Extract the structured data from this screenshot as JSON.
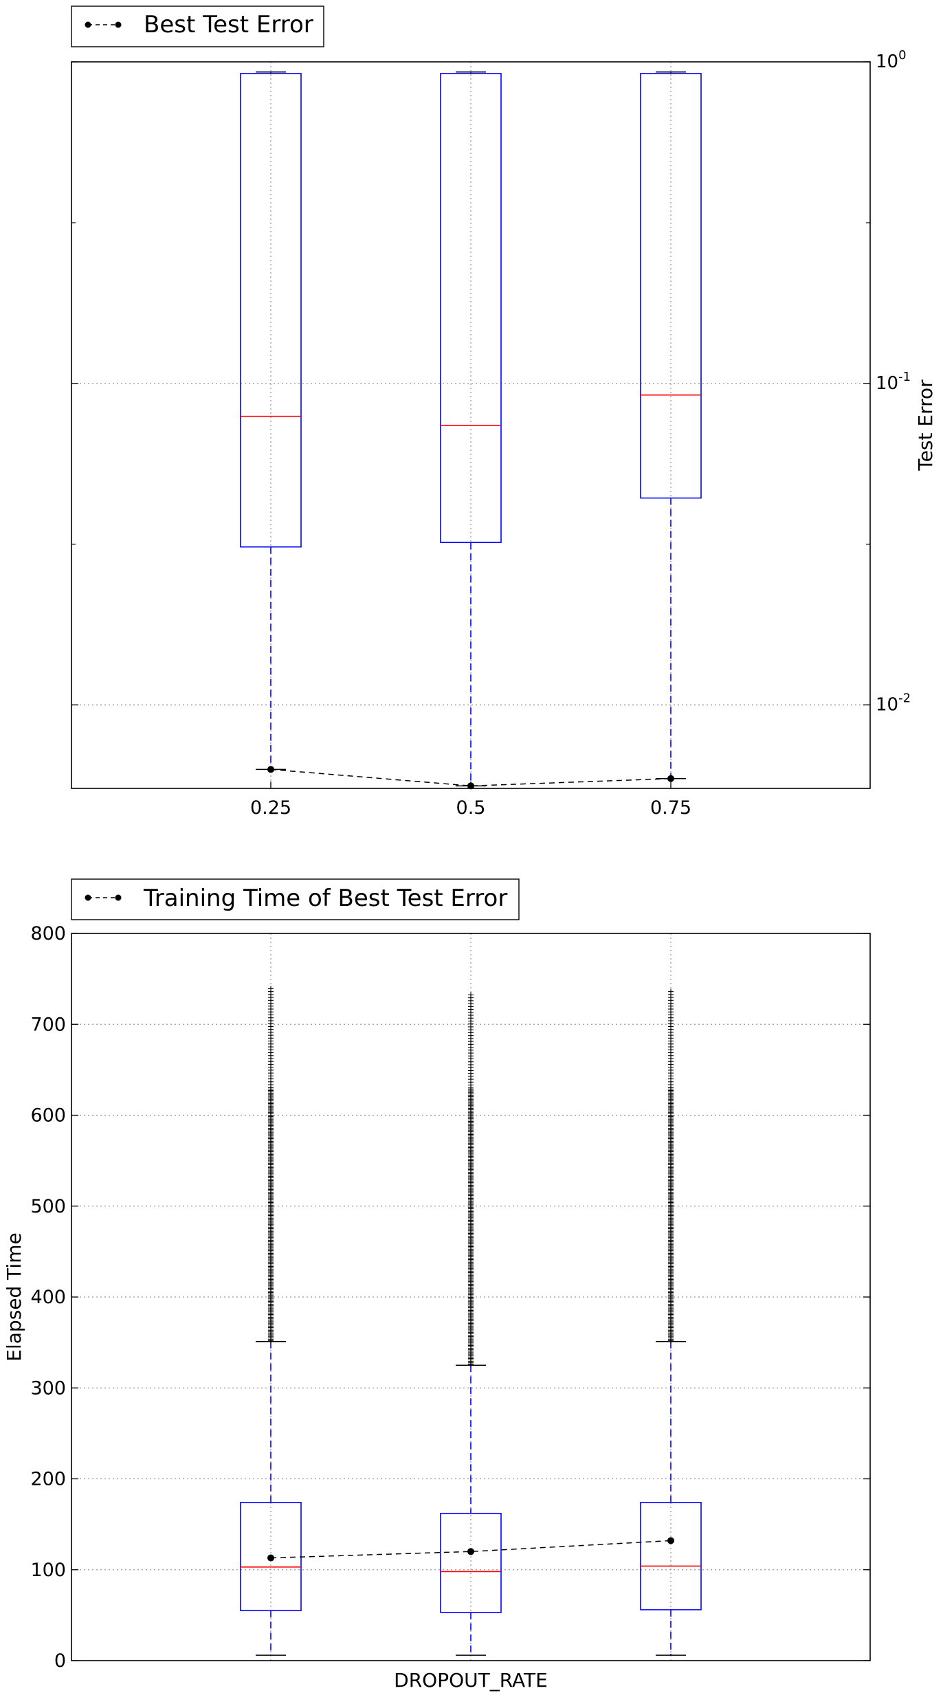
{
  "chart_data": [
    {
      "type": "box",
      "legend": {
        "label": "Best Test Error",
        "placement": "top-left"
      },
      "x_categories": [
        "0.25",
        "0.5",
        "0.75"
      ],
      "y_axis": {
        "label": "Test Error",
        "side": "right",
        "scale": "log",
        "ylim": [
          0.0055,
          1.0
        ],
        "ticks": [
          {
            "value": 1.0,
            "base": "10",
            "exp": "0"
          },
          {
            "value": 0.1,
            "base": "10",
            "exp": "-1"
          },
          {
            "value": 0.01,
            "base": "10",
            "exp": "-2"
          }
        ]
      },
      "grid": true,
      "boxes": [
        {
          "category": "0.25",
          "whisker_low": 0.0063,
          "q1": 0.031,
          "median": 0.079,
          "q3": 0.92,
          "whisker_high": 0.93
        },
        {
          "category": "0.5",
          "whisker_low": 0.0056,
          "q1": 0.032,
          "median": 0.074,
          "q3": 0.92,
          "whisker_high": 0.93
        },
        {
          "category": "0.75",
          "whisker_low": 0.0059,
          "q1": 0.044,
          "median": 0.092,
          "q3": 0.92,
          "whisker_high": 0.93
        }
      ],
      "series": [
        {
          "name": "Best Test Error",
          "style": "dashed-black-dots",
          "values": [
            0.0063,
            0.0056,
            0.0059
          ]
        }
      ]
    },
    {
      "type": "box",
      "legend": {
        "label": "Training Time of Best Test Error",
        "placement": "top-left"
      },
      "x_label": "DROPOUT_RATE",
      "x_categories": [
        "0.25",
        "0.5",
        "0.75"
      ],
      "y_axis": {
        "label": "Elapsed Time",
        "side": "left",
        "scale": "linear",
        "ylim": [
          0,
          800
        ],
        "ticks": [
          "0",
          "100",
          "200",
          "300",
          "400",
          "500",
          "600",
          "700",
          "800"
        ]
      },
      "grid": true,
      "boxes": [
        {
          "category": "0.25",
          "whisker_low": 6,
          "q1": 55,
          "median": 103,
          "q3": 174,
          "whisker_high": 351,
          "outliers_range": [
            352,
            742
          ]
        },
        {
          "category": "0.5",
          "whisker_low": 6,
          "q1": 53,
          "median": 98,
          "q3": 162,
          "whisker_high": 325,
          "outliers_range": [
            326,
            735
          ]
        },
        {
          "category": "0.75",
          "whisker_low": 6,
          "q1": 56,
          "median": 104,
          "q3": 174,
          "whisker_high": 351,
          "outliers_range": [
            352,
            739
          ]
        }
      ],
      "series": [
        {
          "name": "Training Time of Best Test Error",
          "style": "dashed-black-dots",
          "values": [
            113,
            120,
            132
          ]
        }
      ]
    }
  ]
}
